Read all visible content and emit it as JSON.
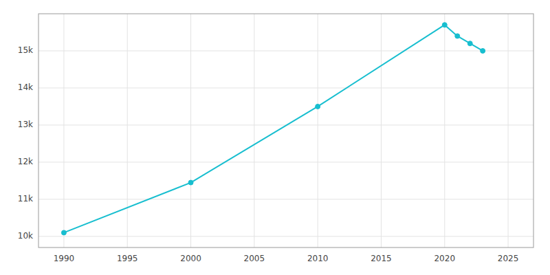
{
  "chart_data": {
    "type": "line",
    "x": [
      1990,
      2000,
      2010,
      2020,
      2021,
      2022,
      2023
    ],
    "values": [
      10100,
      11450,
      13500,
      15700,
      15400,
      15200,
      15000
    ],
    "color": "#17becf",
    "marker": "circle",
    "xlim": [
      1988,
      2027
    ],
    "ylim": [
      9700,
      16000
    ],
    "xticks": [
      1990,
      1995,
      2000,
      2005,
      2010,
      2015,
      2020,
      2025
    ],
    "yticks": [
      {
        "value": 10000,
        "label": "10k"
      },
      {
        "value": 11000,
        "label": "11k"
      },
      {
        "value": 12000,
        "label": "12k"
      },
      {
        "value": 13000,
        "label": "13k"
      },
      {
        "value": 14000,
        "label": "14k"
      },
      {
        "value": 15000,
        "label": "15k"
      }
    ],
    "grid": true
  }
}
